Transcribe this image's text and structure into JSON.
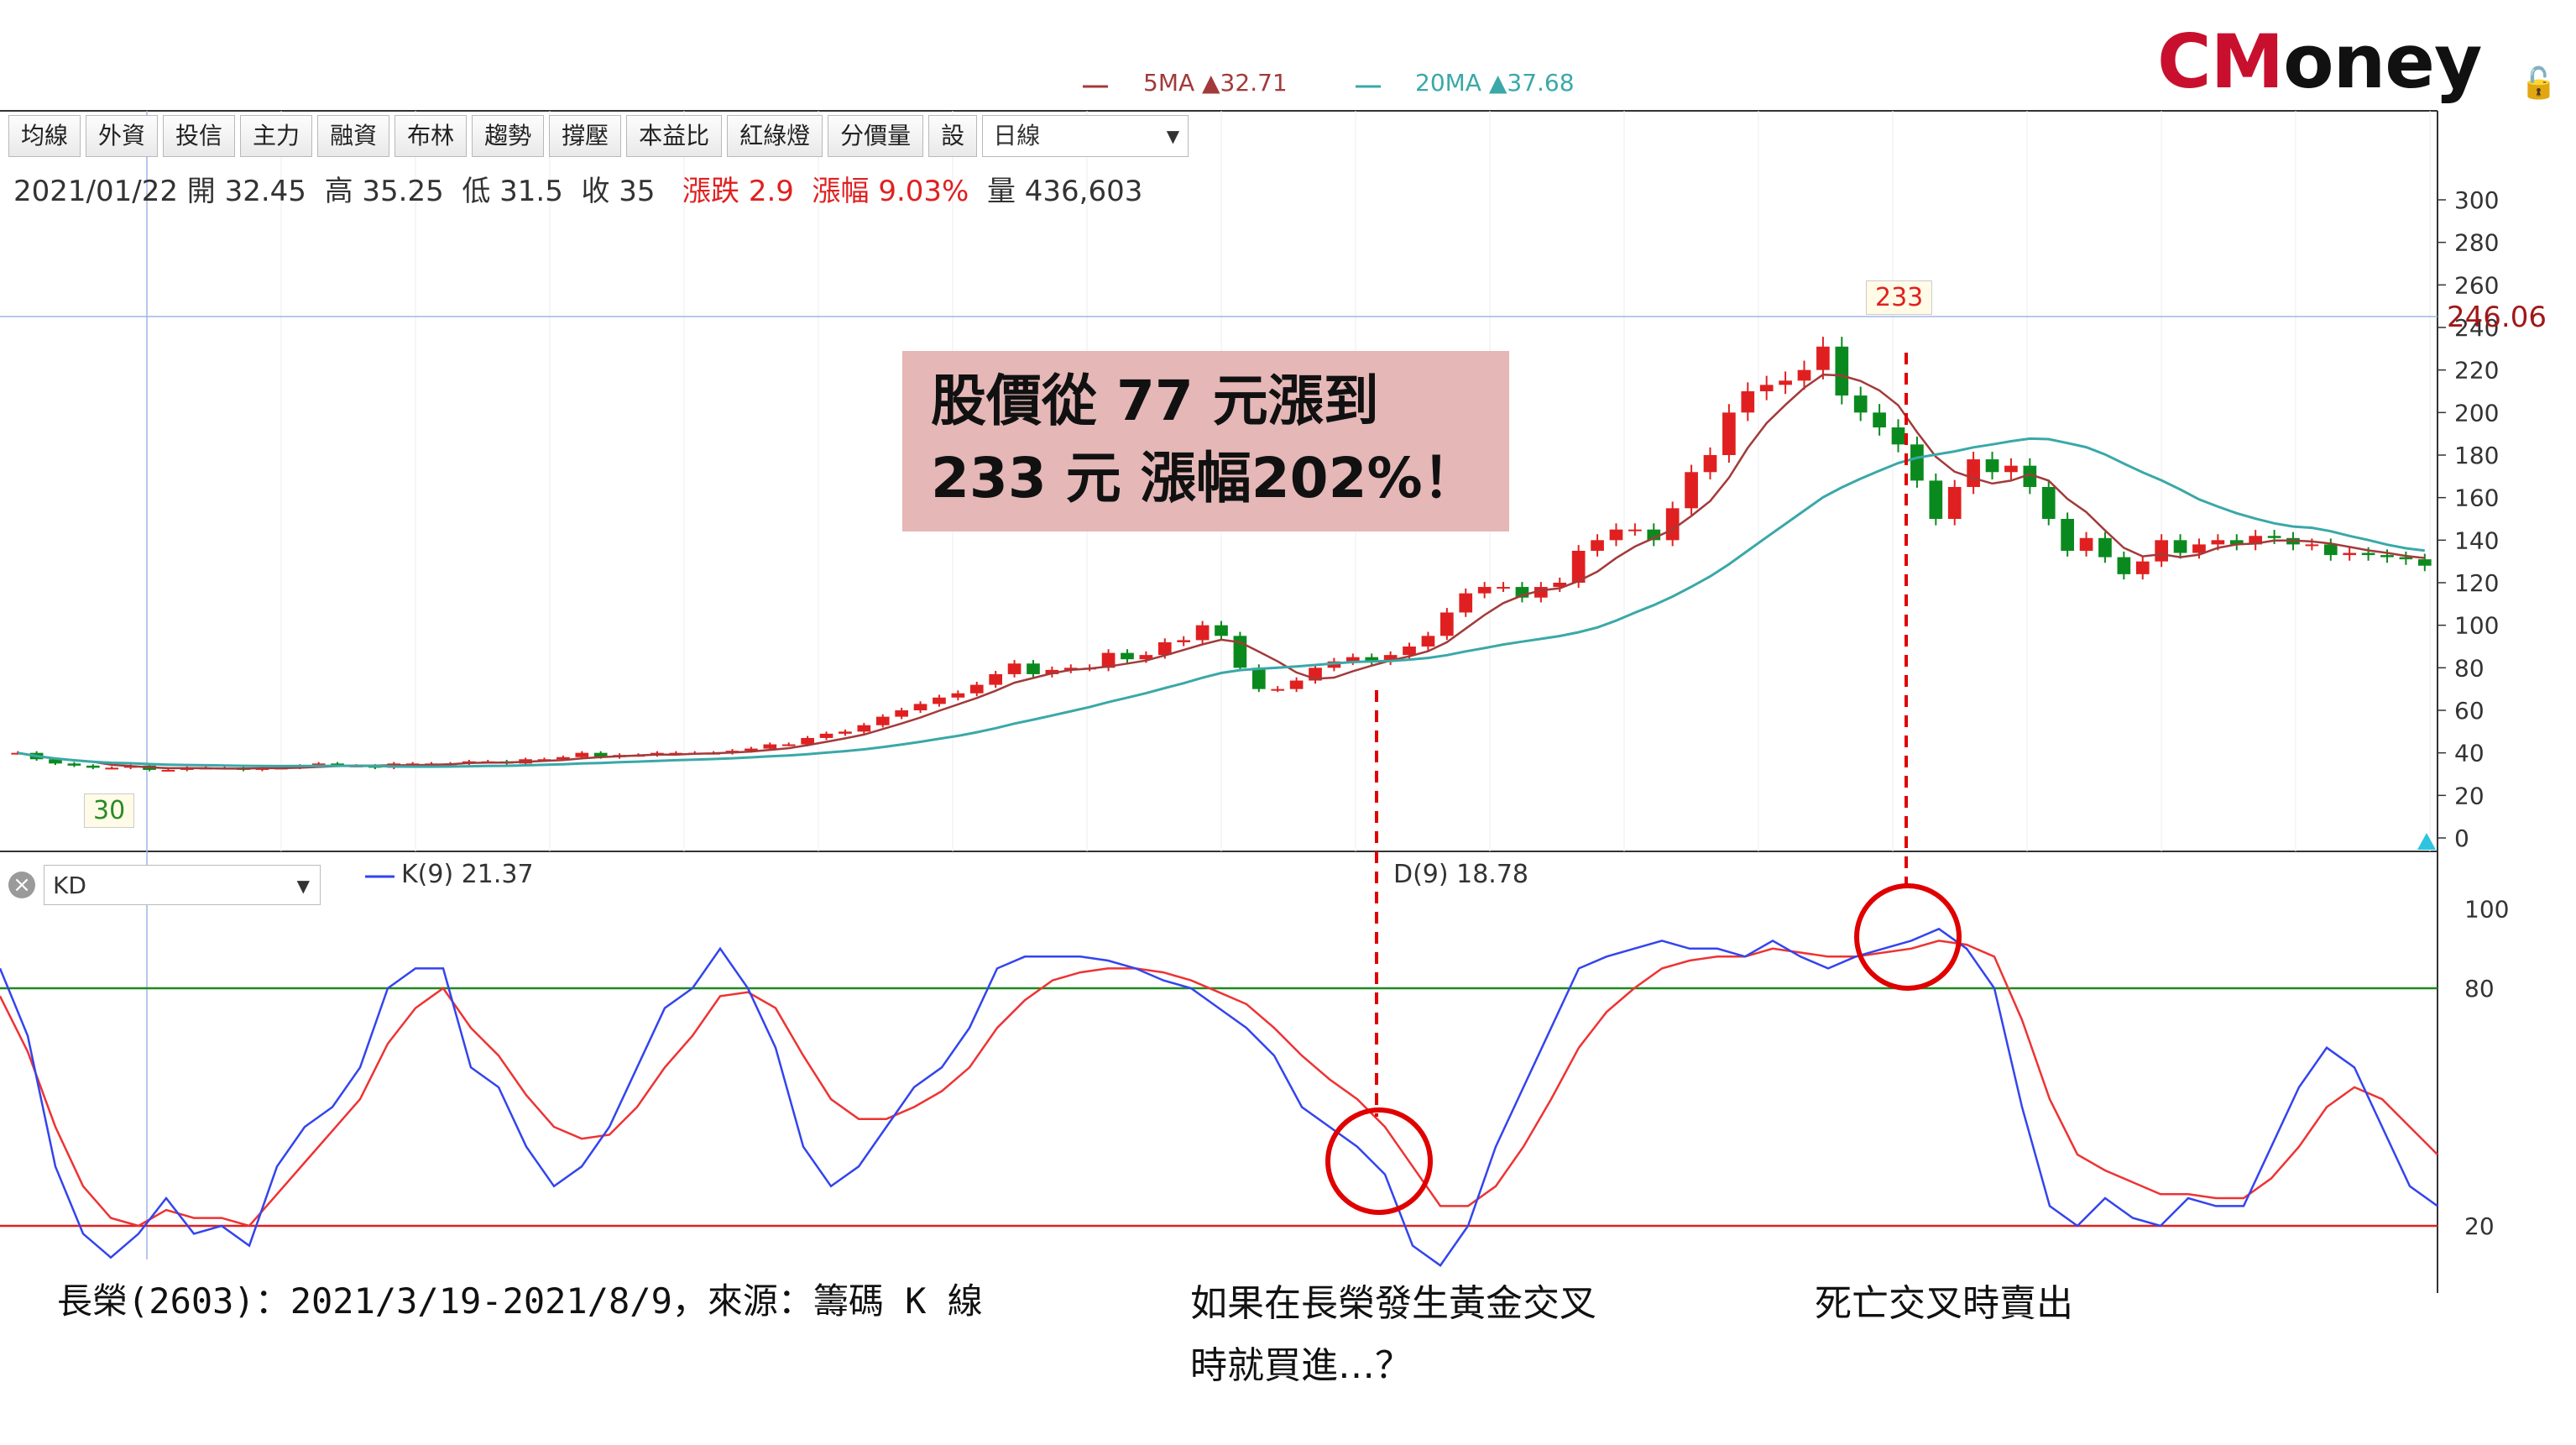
{
  "toolbar": {
    "buttons": [
      "均線",
      "外資",
      "投信",
      "主力",
      "融資",
      "布林",
      "趨勢",
      "撐壓",
      "本益比",
      "紅綠燈",
      "分價量",
      "設"
    ],
    "period_select": "日線"
  },
  "ohlc": {
    "date": "2021/01/22",
    "open_label": "開",
    "open": "32.45",
    "high_label": "高",
    "high": "35.25",
    "low_label": "低",
    "low": "31.5",
    "close_label": "收",
    "close": "35",
    "change_label": "漲跌",
    "change": "2.9",
    "pct_label": "漲幅",
    "pct": "9.03%",
    "vol_label": "量",
    "vol": "436,603"
  },
  "ma_legend": {
    "ma5": "5MA ▲32.71",
    "ma20": "20MA ▲37.68"
  },
  "logo": {
    "c": "CM",
    "rest": "oney"
  },
  "callout": {
    "line1": "股價從  77  元漲到",
    "line2": "233  元  漲幅202%！"
  },
  "markers": {
    "high_tag": "233",
    "low_tag": "30",
    "crosshair_price": "246.06"
  },
  "kd": {
    "select": "KD",
    "k_legend": "K(9) 21.37",
    "d_legend": "D(9) 18.78",
    "levels": [
      "100",
      "80",
      "20"
    ]
  },
  "captions": {
    "source": "長榮(2603)：2021/3/19-2021/8/9，來源：籌碼 K 線",
    "golden_line1": "如果在長榮發生黃金交叉",
    "golden_line2": "時就買進…？",
    "death": "死亡交叉時賣出"
  },
  "colors": {
    "up": "#e02020",
    "down": "#0a8a1e",
    "ma5": "#a33a3a",
    "ma20": "#3aa8a8",
    "k_line": "#3344ee",
    "d_line": "#ee3333",
    "annotation": "#e00000"
  },
  "chart_data": [
    {
      "type": "candlestick",
      "title": "",
      "ylim": [
        0,
        310
      ],
      "yticks": [
        "300",
        "280",
        "260",
        "240",
        "220",
        "200",
        "180",
        "160",
        "140",
        "120",
        "100",
        "80",
        "60",
        "40",
        "20",
        "0"
      ],
      "closes": [
        40,
        37,
        35,
        34,
        33,
        33,
        34,
        32,
        32,
        33,
        33,
        33,
        32,
        33,
        33,
        34,
        35,
        34,
        34,
        33,
        35,
        35,
        35,
        35,
        36,
        36,
        35,
        37,
        37,
        38,
        40,
        38,
        39,
        39,
        40,
        40,
        40,
        40,
        41,
        42,
        44,
        44,
        47,
        49,
        50,
        53,
        57,
        60,
        63,
        66,
        68,
        72,
        77,
        82,
        77,
        79,
        80,
        80,
        87,
        84,
        86,
        92,
        93,
        100,
        95,
        80,
        70,
        70,
        74,
        80,
        83,
        85,
        83,
        86,
        90,
        95,
        106,
        115,
        118,
        118,
        113,
        118,
        120,
        135,
        140,
        145,
        145,
        140,
        155,
        172,
        180,
        200,
        210,
        213,
        215,
        220,
        231,
        208,
        200,
        193,
        185,
        168,
        150,
        165,
        178,
        172,
        175,
        165,
        150,
        135,
        141,
        132,
        124,
        130,
        140,
        134,
        138,
        140,
        138,
        142,
        141,
        138,
        138,
        133,
        134,
        133,
        132,
        131,
        128
      ]
    },
    {
      "type": "line",
      "title": "",
      "ylim": [
        0,
        100
      ],
      "series": [
        {
          "name": "K(9)",
          "values": [
            85,
            68,
            35,
            18,
            12,
            18,
            27,
            18,
            20,
            15,
            35,
            45,
            50,
            60,
            80,
            85,
            85,
            60,
            55,
            40,
            30,
            35,
            45,
            60,
            75,
            80,
            90,
            80,
            65,
            40,
            30,
            35,
            45,
            55,
            60,
            70,
            85,
            88,
            88,
            88,
            87,
            85,
            82,
            80,
            75,
            70,
            63,
            50,
            45,
            40,
            33,
            15,
            10,
            20,
            40,
            55,
            70,
            85,
            88,
            90,
            92,
            90,
            90,
            88,
            92,
            88,
            85,
            88,
            90,
            92,
            95,
            90,
            80,
            50,
            25,
            20,
            27,
            22,
            20,
            27,
            25,
            25,
            40,
            55,
            65,
            60,
            45,
            30,
            25
          ]
        },
        {
          "name": "D(9)",
          "values": [
            78,
            64,
            45,
            30,
            22,
            20,
            24,
            22,
            22,
            20,
            28,
            36,
            44,
            52,
            66,
            75,
            80,
            70,
            63,
            53,
            45,
            42,
            43,
            50,
            60,
            68,
            78,
            79,
            75,
            63,
            52,
            47,
            47,
            50,
            54,
            60,
            70,
            77,
            82,
            84,
            85,
            85,
            84,
            82,
            79,
            76,
            70,
            63,
            57,
            52,
            45,
            35,
            25,
            25,
            30,
            40,
            52,
            65,
            74,
            80,
            85,
            87,
            88,
            88,
            90,
            89,
            88,
            88,
            89,
            90,
            92,
            91,
            88,
            72,
            52,
            38,
            34,
            31,
            28,
            28,
            27,
            27,
            32,
            40,
            50,
            55,
            52,
            45,
            38
          ]
        }
      ],
      "reference_lines": [
        80,
        20
      ]
    }
  ]
}
